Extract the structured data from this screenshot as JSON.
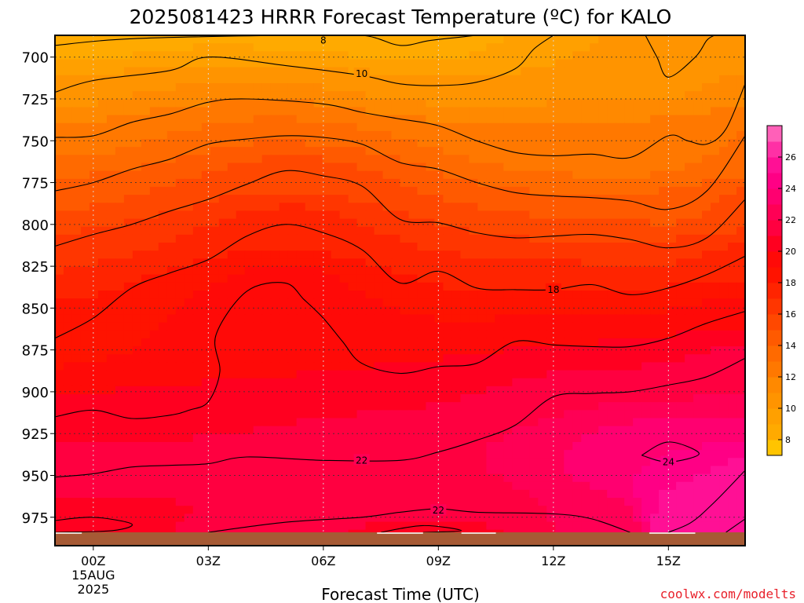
{
  "chart_data": {
    "type": "heatmap",
    "title": "2025081423 HRRR Forecast Temperature (ºC) for KALO",
    "xlabel": "Forecast Time (UTC)",
    "ylabel": "",
    "x_ticks": [
      {
        "hour": 0,
        "label": "00Z",
        "sub": [
          "15AUG",
          "2025"
        ]
      },
      {
        "hour": 3,
        "label": "03Z",
        "sub": []
      },
      {
        "hour": 6,
        "label": "06Z",
        "sub": []
      },
      {
        "hour": 9,
        "label": "09Z",
        "sub": []
      },
      {
        "hour": 12,
        "label": "12Z",
        "sub": []
      },
      {
        "hour": 15,
        "label": "15Z",
        "sub": []
      }
    ],
    "xlim": [
      -1,
      17
    ],
    "y_ticks": [
      700,
      725,
      750,
      775,
      800,
      825,
      850,
      875,
      900,
      925,
      950,
      975
    ],
    "ylim": [
      687,
      992
    ],
    "surface_pressure_hpa": 984,
    "grid": true,
    "colorbar": {
      "ticks": [
        8,
        10,
        12,
        14,
        16,
        18,
        20,
        22,
        24,
        26
      ],
      "range": [
        7,
        28
      ],
      "levels": [
        {
          "lo": 7,
          "hi": 8,
          "color": "#ffc400"
        },
        {
          "lo": 8,
          "hi": 9,
          "color": "#ffaa00"
        },
        {
          "lo": 9,
          "hi": 10,
          "color": "#ffa000"
        },
        {
          "lo": 10,
          "hi": 11,
          "color": "#ff9400"
        },
        {
          "lo": 11,
          "hi": 12,
          "color": "#ff8900"
        },
        {
          "lo": 12,
          "hi": 13,
          "color": "#ff7800"
        },
        {
          "lo": 13,
          "hi": 14,
          "color": "#ff6a00"
        },
        {
          "lo": 14,
          "hi": 15,
          "color": "#ff5a00"
        },
        {
          "lo": 15,
          "hi": 16,
          "color": "#ff4800"
        },
        {
          "lo": 16,
          "hi": 17,
          "color": "#ff3600"
        },
        {
          "lo": 17,
          "hi": 18,
          "color": "#ff2400"
        },
        {
          "lo": 18,
          "hi": 19,
          "color": "#ff1300"
        },
        {
          "lo": 19,
          "hi": 20,
          "color": "#ff0a08"
        },
        {
          "lo": 20,
          "hi": 21,
          "color": "#ff0020"
        },
        {
          "lo": 21,
          "hi": 22,
          "color": "#ff0040"
        },
        {
          "lo": 22,
          "hi": 23,
          "color": "#ff0055"
        },
        {
          "lo": 23,
          "hi": 24,
          "color": "#ff0070"
        },
        {
          "lo": 24,
          "hi": 25,
          "color": "#ff0085"
        },
        {
          "lo": 25,
          "hi": 26,
          "color": "#ff1095"
        },
        {
          "lo": 26,
          "hi": 27,
          "color": "#ff30a5"
        },
        {
          "lo": 27,
          "hi": 28,
          "color": "#ff60b8"
        }
      ]
    },
    "ground_color": "#a65a35",
    "contours": [
      {
        "value": 8,
        "points": [
          [
            -1,
            693
          ],
          [
            1,
            689
          ],
          [
            5,
            687
          ],
          [
            7,
            687
          ],
          [
            8,
            693
          ],
          [
            8.8,
            690
          ],
          [
            10,
            687
          ]
        ],
        "label": {
          "text": "8",
          "hour": 6,
          "hpa": 690
        }
      },
      {
        "value": 10,
        "points": [
          [
            -1,
            721
          ],
          [
            0,
            714
          ],
          [
            2,
            708
          ],
          [
            3,
            700
          ],
          [
            5,
            705
          ],
          [
            7,
            711
          ],
          [
            8,
            716
          ],
          [
            9,
            717
          ],
          [
            10,
            715
          ],
          [
            11,
            707
          ],
          [
            11.5,
            695
          ],
          [
            12,
            687
          ]
        ],
        "label": {
          "text": "10",
          "hour": 7,
          "hpa": 710
        }
      },
      {
        "value": 10,
        "points": [
          [
            14.4,
            687
          ],
          [
            14.7,
            700
          ],
          [
            15,
            712
          ],
          [
            15.7,
            700
          ],
          [
            16,
            690
          ],
          [
            16.2,
            687
          ]
        ],
        "label": null
      },
      {
        "value": 12,
        "points": [
          [
            -1,
            748
          ],
          [
            0,
            747
          ],
          [
            1,
            739
          ],
          [
            2,
            734
          ],
          [
            3,
            727
          ],
          [
            4,
            725
          ],
          [
            6,
            728
          ],
          [
            7,
            733
          ],
          [
            8,
            737
          ],
          [
            9,
            741
          ],
          [
            10,
            750
          ],
          [
            11,
            757
          ],
          [
            12,
            759
          ],
          [
            13,
            758
          ],
          [
            14,
            760
          ],
          [
            15,
            747
          ],
          [
            15.5,
            750
          ],
          [
            16.0,
            752
          ],
          [
            16.5,
            743
          ],
          [
            17,
            716
          ]
        ],
        "label": null
      },
      {
        "value": 14,
        "points": [
          [
            -1,
            780
          ],
          [
            0,
            775
          ],
          [
            1,
            767
          ],
          [
            2,
            761
          ],
          [
            3,
            752
          ],
          [
            4,
            749
          ],
          [
            5,
            747
          ],
          [
            6,
            748
          ],
          [
            7,
            752
          ],
          [
            8,
            763
          ],
          [
            9,
            767
          ],
          [
            10,
            775
          ],
          [
            11,
            781
          ],
          [
            12,
            783
          ],
          [
            13,
            784
          ],
          [
            14,
            786
          ],
          [
            15,
            791
          ],
          [
            16,
            780
          ],
          [
            17,
            747
          ]
        ],
        "label": null
      },
      {
        "value": 16,
        "points": [
          [
            -1,
            813
          ],
          [
            0,
            806
          ],
          [
            1,
            800
          ],
          [
            2,
            792
          ],
          [
            3,
            785
          ],
          [
            4,
            776
          ],
          [
            5,
            768
          ],
          [
            6,
            771
          ],
          [
            7,
            777
          ],
          [
            8,
            797
          ],
          [
            9,
            799
          ],
          [
            10,
            805
          ],
          [
            11,
            808
          ],
          [
            12,
            807
          ],
          [
            13,
            806
          ],
          [
            14,
            809
          ],
          [
            15,
            814
          ],
          [
            16,
            808
          ],
          [
            17,
            785
          ]
        ],
        "label": null
      },
      {
        "value": 18,
        "points": [
          [
            -1,
            868
          ],
          [
            0,
            856
          ],
          [
            1,
            838
          ],
          [
            2,
            829
          ],
          [
            3,
            821
          ],
          [
            4,
            807
          ],
          [
            5,
            800
          ],
          [
            6,
            805
          ],
          [
            7,
            815
          ],
          [
            8,
            835
          ],
          [
            9,
            828
          ],
          [
            10,
            838
          ],
          [
            11,
            839
          ],
          [
            12,
            839
          ],
          [
            13,
            836
          ],
          [
            14,
            842
          ],
          [
            15,
            838
          ],
          [
            16,
            830
          ],
          [
            17,
            819
          ]
        ],
        "label": {
          "text": "18",
          "hour": 12,
          "hpa": 839
        }
      },
      {
        "value": 20,
        "points": [
          [
            -1,
            915
          ],
          [
            0,
            911
          ],
          [
            1,
            916
          ],
          [
            2,
            914
          ],
          [
            2.5,
            911
          ],
          [
            3,
            906
          ],
          [
            3.3,
            888
          ],
          [
            3.2,
            866
          ],
          [
            4,
            840
          ],
          [
            5,
            835
          ],
          [
            5.5,
            845
          ],
          [
            6,
            856
          ],
          [
            6.5,
            870
          ],
          [
            7,
            883
          ],
          [
            8,
            889
          ],
          [
            9,
            885
          ],
          [
            10,
            883
          ],
          [
            11,
            870
          ],
          [
            12,
            872
          ],
          [
            13,
            873
          ],
          [
            14,
            873
          ],
          [
            15,
            868
          ],
          [
            16,
            859
          ],
          [
            17,
            852
          ]
        ],
        "label": null
      },
      {
        "value": 22,
        "points": [
          [
            -1,
            951
          ],
          [
            0,
            949
          ],
          [
            1,
            945
          ],
          [
            2,
            944
          ],
          [
            3,
            943
          ],
          [
            4,
            939
          ],
          [
            6,
            941
          ],
          [
            8,
            941
          ],
          [
            9,
            936
          ],
          [
            10,
            929
          ],
          [
            11,
            920
          ],
          [
            12,
            903
          ],
          [
            13,
            901
          ],
          [
            14,
            900
          ],
          [
            15,
            896
          ],
          [
            16,
            891
          ],
          [
            17,
            880
          ]
        ],
        "label": {
          "text": "22",
          "hour": 7,
          "hpa": 941
        }
      },
      {
        "value": 24,
        "points": [
          [
            14.3,
            938
          ],
          [
            15,
            930
          ],
          [
            15.8,
            937
          ],
          [
            15,
            942
          ],
          [
            14.3,
            938
          ]
        ],
        "label": {
          "text": "24",
          "hour": 15,
          "hpa": 942
        }
      },
      {
        "value": 22,
        "points": [
          [
            3,
            984
          ],
          [
            5,
            978
          ],
          [
            7,
            975
          ],
          [
            8,
            972
          ],
          [
            9,
            970
          ],
          [
            10,
            972
          ],
          [
            12,
            973
          ],
          [
            13,
            976
          ],
          [
            14,
            984
          ]
        ],
        "label": {
          "text": "22",
          "hour": 9,
          "hpa": 971
        }
      },
      {
        "value": 26,
        "points": [
          [
            15,
            984
          ],
          [
            15.6,
            978
          ],
          [
            16.2,
            966
          ],
          [
            17,
            947
          ]
        ],
        "label": null
      },
      {
        "value": 26,
        "points": [
          [
            16.5,
            984
          ],
          [
            17,
            976
          ]
        ],
        "label": null
      },
      {
        "value": 20,
        "points": [
          [
            -1,
            977
          ],
          [
            0,
            975
          ],
          [
            1,
            979
          ],
          [
            0.5,
            983
          ],
          [
            -1,
            984
          ]
        ],
        "label": null
      },
      {
        "value": 20,
        "points": [
          [
            7.5,
            984
          ],
          [
            8.6,
            980
          ],
          [
            9.6,
            983
          ],
          [
            8.6,
            984
          ]
        ],
        "label": null
      }
    ],
    "credit": "coolwx.com/modelts"
  }
}
